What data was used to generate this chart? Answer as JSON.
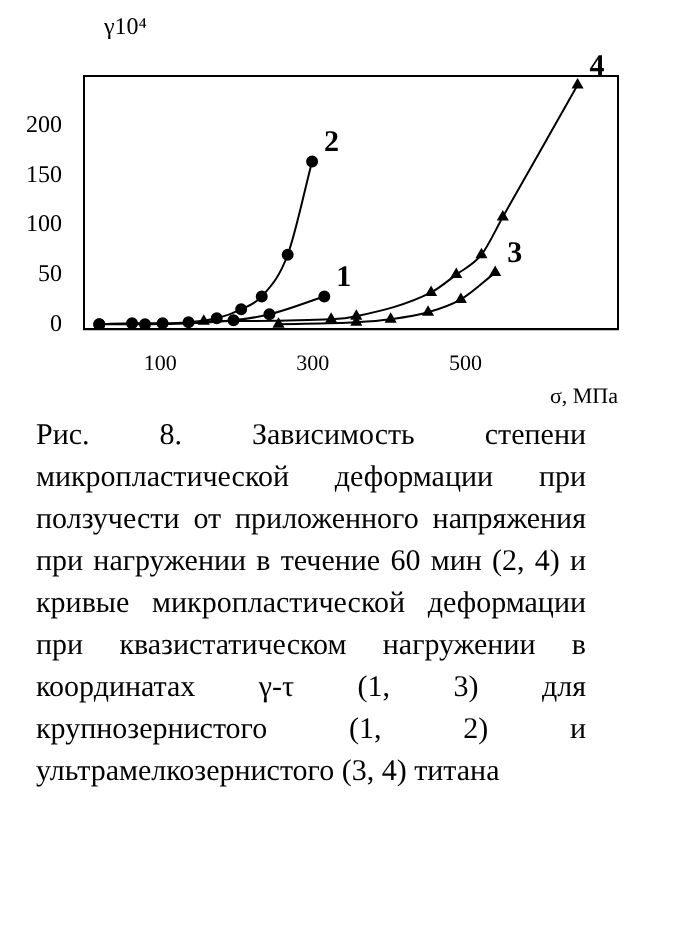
{
  "chart_data": {
    "type": "line",
    "ylabel": "γ10⁴",
    "xlabel": "σ, МПа",
    "xlim": [
      0,
      700
    ],
    "xticks": [
      100,
      300,
      500
    ],
    "ylim": [
      -5,
      250
    ],
    "yticks": [
      0,
      50,
      100,
      150,
      200
    ],
    "grid": false,
    "legend": false,
    "line_style": "solid",
    "series": [
      {
        "name": "1",
        "color": "#000000",
        "marker": "circle",
        "x": [
          20,
          80,
          196,
          243,
          315
        ],
        "values": [
          0,
          0,
          4,
          10,
          28
        ]
      },
      {
        "name": "2",
        "color": "#000000",
        "marker": "circle",
        "x": [
          20,
          63,
          103,
          137,
          174,
          206,
          233,
          267,
          299
        ],
        "values": [
          0,
          1,
          1,
          2,
          6,
          15,
          28,
          70,
          164
        ]
      },
      {
        "name": "3",
        "color": "#000000",
        "marker": "triangle",
        "x": [
          255,
          357,
          402,
          451,
          494,
          539
        ],
        "values": [
          0,
          2,
          5,
          12,
          25,
          52
        ]
      },
      {
        "name": "4",
        "color": "#000000",
        "marker": "triangle",
        "x": [
          157,
          324,
          357,
          455,
          488,
          521,
          549,
          647
        ],
        "values": [
          3,
          5,
          8,
          32,
          50,
          70,
          108,
          241
        ]
      }
    ],
    "annotations": [
      "Рис. 8. Зависимость степени микропластической деформации при ползучести от приложенного напряжения при нагружении в течение 60 мин (2, 4) и кривые микропластической деформации при квазистатическом нагружении в координатах γ-τ (1, 3) для крупнозернистого (1, 2) и ультрамелкозернистого (3, 4) титана"
    ]
  }
}
